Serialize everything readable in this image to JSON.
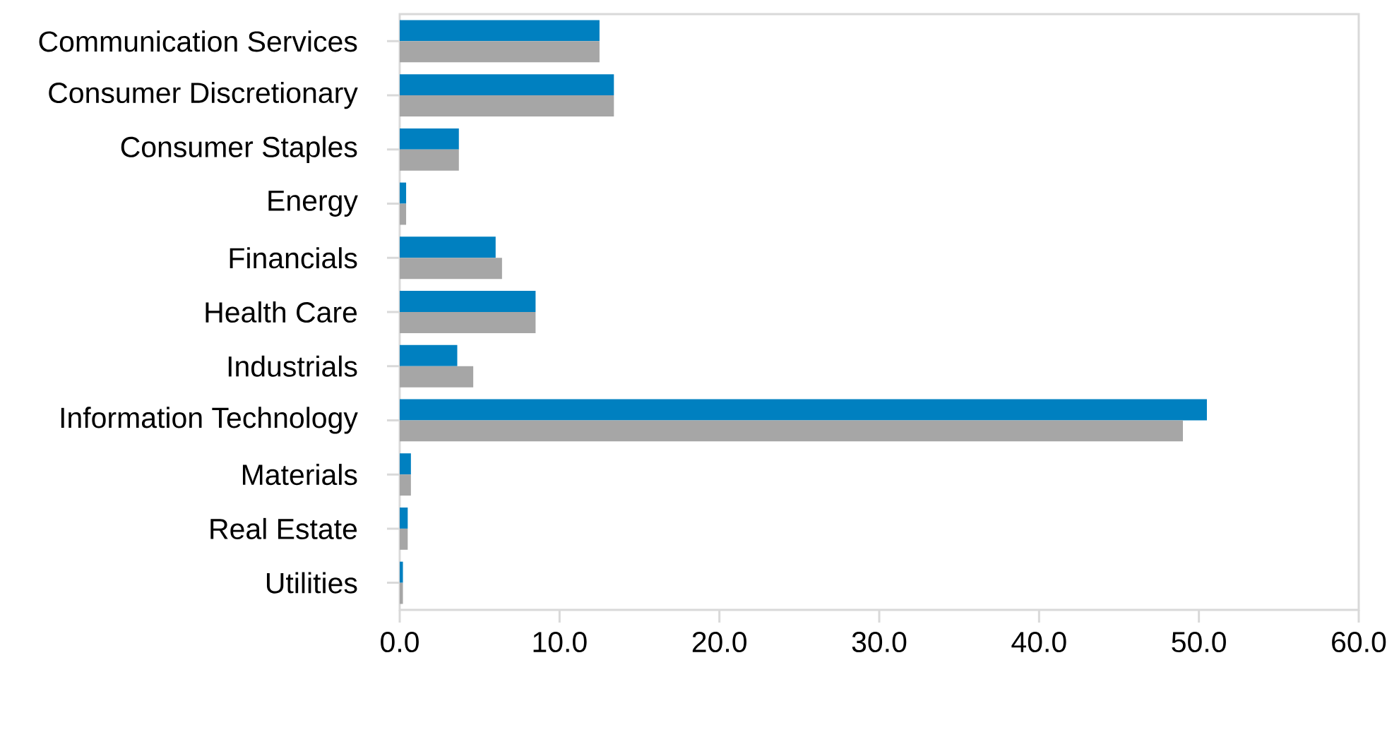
{
  "chart_data": {
    "type": "bar",
    "orientation": "horizontal",
    "categories": [
      "Communication Services",
      "Consumer Discretionary",
      "Consumer Staples",
      "Energy",
      "Financials",
      "Health Care",
      "Industrials",
      "Information Technology",
      "Materials",
      "Real Estate",
      "Utilities"
    ],
    "series": [
      {
        "color": "#0080c0",
        "values": [
          12.5,
          13.4,
          3.7,
          0.4,
          6.0,
          8.5,
          3.6,
          50.5,
          0.7,
          0.5,
          0.2
        ]
      },
      {
        "color": "#a6a6a6",
        "values": [
          12.5,
          13.4,
          3.7,
          0.4,
          6.4,
          8.5,
          4.6,
          49.0,
          0.7,
          0.5,
          0.2
        ]
      }
    ],
    "xlim": [
      0,
      60
    ],
    "xticks": [
      {
        "value": 0,
        "label": "0.0"
      },
      {
        "value": 10,
        "label": "10.0"
      },
      {
        "value": 20,
        "label": "20.0"
      },
      {
        "value": 30,
        "label": "30.0"
      },
      {
        "value": 40,
        "label": "40.0"
      },
      {
        "value": 50,
        "label": "50.0"
      },
      {
        "value": 60,
        "label": "60.0"
      }
    ]
  }
}
